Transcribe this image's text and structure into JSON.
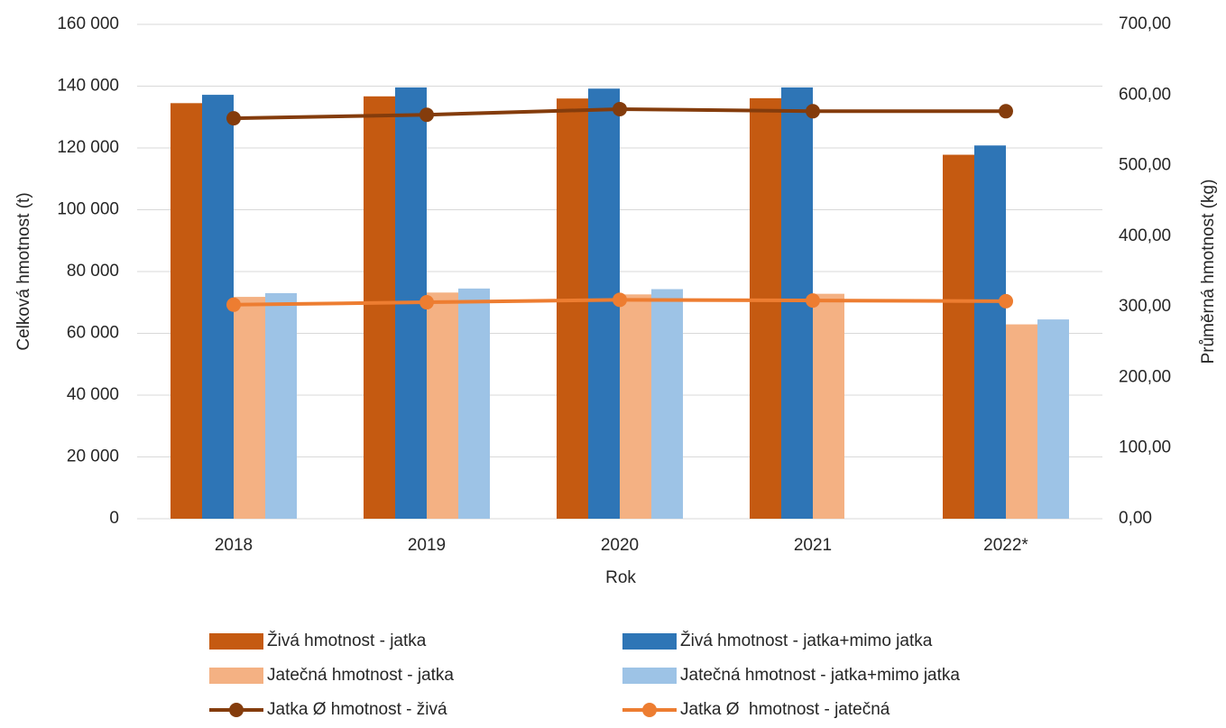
{
  "chart_data": {
    "type": "bar",
    "x_label": "Rok",
    "y_label": "Celková hmotnost (t)",
    "y2_label": "Průměrná hmotnost (kg)",
    "categories": [
      "2018",
      "2019",
      "2020",
      "2021",
      "2022*"
    ],
    "ylim": [
      0,
      160000
    ],
    "yticks": [
      0,
      {
        "value": 20000,
        "label": "20 000"
      },
      {
        "value": 40000,
        "label": "40 000"
      },
      {
        "value": 60000,
        "label": "60 000"
      },
      {
        "value": 80000,
        "label": "80 000"
      },
      {
        "value": 100000,
        "label": "100 000"
      },
      {
        "value": 120000,
        "label": "120 000"
      },
      {
        "value": 140000,
        "label": "140 000"
      },
      {
        "value": 160000,
        "label": "160 000"
      }
    ],
    "y2lim": [
      0,
      700
    ],
    "y2ticks": [
      {
        "value": 0,
        "label": "0,00"
      },
      {
        "value": 100,
        "label": "100,00"
      },
      {
        "value": 200,
        "label": "200,00"
      },
      {
        "value": 300,
        "label": "300,00"
      },
      {
        "value": 400,
        "label": "400,00"
      },
      {
        "value": 500,
        "label": "500,00"
      },
      {
        "value": 600,
        "label": "600,00"
      },
      {
        "value": 700,
        "label": "700,00"
      }
    ],
    "grid": true,
    "legend": "bottom",
    "series": [
      {
        "name": "Živá hmotnost - jatka",
        "color": "#c55a11",
        "type": "bar",
        "values": [
          134500,
          136700,
          136000,
          136100,
          117800
        ]
      },
      {
        "name": "Živá hmotnost - jatka+mimo jatka",
        "color": "#2e75b6",
        "type": "bar",
        "values": [
          137200,
          139600,
          139200,
          139600,
          120800
        ]
      },
      {
        "name": "Jatečná hmotnost - jatka",
        "color": "#f4b183",
        "type": "bar",
        "values": [
          71800,
          73200,
          72600,
          72800,
          62900
        ]
      },
      {
        "name": "Jatečná hmotnost - jatka+mimo jatka",
        "color": "#9dc3e6",
        "type": "bar",
        "values": [
          73000,
          74500,
          74300,
          null,
          64500
        ]
      },
      {
        "name": "Jatka Ø hmotnost - živá",
        "color": "#843c0c",
        "type": "line",
        "axis": "y2",
        "values": [
          567,
          572,
          580,
          577,
          577
        ]
      },
      {
        "name": "Jatka Ø  hmotnost - jatečná",
        "color": "#ed7d31",
        "type": "line",
        "axis": "y2",
        "values": [
          303,
          306.5,
          310,
          309,
          308
        ]
      }
    ]
  }
}
